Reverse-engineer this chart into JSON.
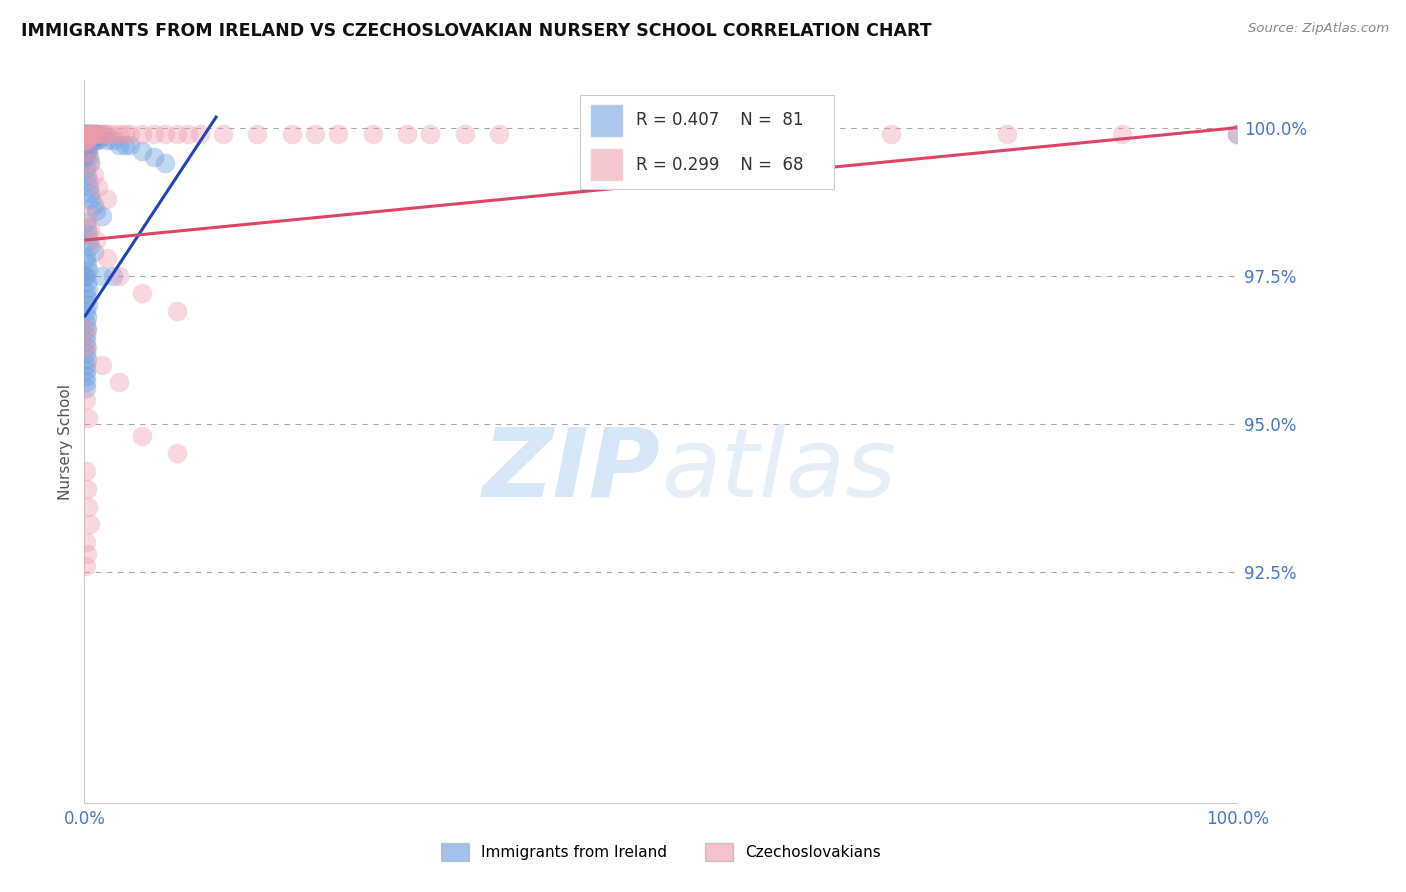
{
  "title": "IMMIGRANTS FROM IRELAND VS CZECHOSLOVAKIAN NURSERY SCHOOL CORRELATION CHART",
  "source": "Source: ZipAtlas.com",
  "ylabel": "Nursery School",
  "blue_color": "#6699dd",
  "pink_color": "#ee99aa",
  "blue_line_color": "#2244bb",
  "pink_line_color": "#dd4466",
  "axis_tick_color": "#4477cc",
  "title_color": "#111111",
  "source_color": "#888888",
  "watermark_color": "#cce0f5",
  "grid_color": "#aaaaaa",
  "xmin": 0.0,
  "xmax": 1.0,
  "ymin": 0.886,
  "ymax": 1.008,
  "ytick_vals": [
    0.925,
    0.95,
    0.975,
    1.0
  ],
  "ytick_labels": [
    "92.5%",
    "95.0%",
    "97.5%",
    "100.0%"
  ],
  "xtick_vals": [
    0.0,
    1.0
  ],
  "xtick_labels": [
    "0.0%",
    "100.0%"
  ],
  "blue_line_x": [
    0.0,
    0.115
  ],
  "blue_line_y": [
    0.968,
    1.002
  ],
  "pink_line_x": [
    0.0,
    1.0
  ],
  "pink_line_y": [
    0.981,
    1.0
  ],
  "ireland_points": [
    [
      0.002,
      0.999
    ],
    [
      0.003,
      0.999
    ],
    [
      0.004,
      0.999
    ],
    [
      0.005,
      0.999
    ],
    [
      0.0,
      0.999
    ],
    [
      0.0,
      0.999
    ],
    [
      0.001,
      0.999
    ],
    [
      0.001,
      0.999
    ],
    [
      0.002,
      0.998
    ],
    [
      0.003,
      0.998
    ],
    [
      0.004,
      0.998
    ],
    [
      0.005,
      0.998
    ],
    [
      0.006,
      0.999
    ],
    [
      0.007,
      0.999
    ],
    [
      0.008,
      0.999
    ],
    [
      0.009,
      0.999
    ],
    [
      0.006,
      0.998
    ],
    [
      0.007,
      0.998
    ],
    [
      0.008,
      0.998
    ],
    [
      0.01,
      0.999
    ],
    [
      0.012,
      0.999
    ],
    [
      0.015,
      0.999
    ],
    [
      0.01,
      0.998
    ],
    [
      0.012,
      0.998
    ],
    [
      0.02,
      0.998
    ],
    [
      0.025,
      0.998
    ],
    [
      0.03,
      0.997
    ],
    [
      0.035,
      0.997
    ],
    [
      0.04,
      0.997
    ],
    [
      0.05,
      0.996
    ],
    [
      0.06,
      0.995
    ],
    [
      0.07,
      0.994
    ],
    [
      0.0,
      0.997
    ],
    [
      0.001,
      0.997
    ],
    [
      0.002,
      0.997
    ],
    [
      0.0,
      0.996
    ],
    [
      0.001,
      0.996
    ],
    [
      0.002,
      0.996
    ],
    [
      0.0,
      0.995
    ],
    [
      0.001,
      0.995
    ],
    [
      0.003,
      0.996
    ],
    [
      0.004,
      0.995
    ],
    [
      0.005,
      0.994
    ],
    [
      0.001,
      0.993
    ],
    [
      0.002,
      0.992
    ],
    [
      0.003,
      0.991
    ],
    [
      0.004,
      0.99
    ],
    [
      0.005,
      0.989
    ],
    [
      0.006,
      0.988
    ],
    [
      0.008,
      0.987
    ],
    [
      0.01,
      0.986
    ],
    [
      0.015,
      0.985
    ],
    [
      0.001,
      0.984
    ],
    [
      0.002,
      0.983
    ],
    [
      0.003,
      0.982
    ],
    [
      0.004,
      0.981
    ],
    [
      0.005,
      0.98
    ],
    [
      0.008,
      0.979
    ],
    [
      0.001,
      0.978
    ],
    [
      0.002,
      0.977
    ],
    [
      0.003,
      0.976
    ],
    [
      0.001,
      0.975
    ],
    [
      0.002,
      0.974
    ],
    [
      0.003,
      0.973
    ],
    [
      0.001,
      0.972
    ],
    [
      0.002,
      0.971
    ],
    [
      0.003,
      0.97
    ],
    [
      0.001,
      0.969
    ],
    [
      0.002,
      0.968
    ],
    [
      0.001,
      0.967
    ],
    [
      0.002,
      0.966
    ],
    [
      0.001,
      0.965
    ],
    [
      0.001,
      0.964
    ],
    [
      0.001,
      0.963
    ],
    [
      0.001,
      0.962
    ],
    [
      0.002,
      0.961
    ],
    [
      0.001,
      0.96
    ],
    [
      0.001,
      0.959
    ],
    [
      0.001,
      0.958
    ],
    [
      0.001,
      0.957
    ],
    [
      0.001,
      0.956
    ],
    [
      0.0,
      0.975
    ],
    [
      0.015,
      0.975
    ],
    [
      0.025,
      0.975
    ],
    [
      1.0,
      0.999
    ],
    [
      0.45,
      0.999
    ],
    [
      0.5,
      0.999
    ],
    [
      0.55,
      0.999
    ]
  ],
  "czech_points": [
    [
      0.0,
      0.999
    ],
    [
      0.001,
      0.999
    ],
    [
      0.002,
      0.999
    ],
    [
      0.003,
      0.999
    ],
    [
      0.004,
      0.999
    ],
    [
      0.005,
      0.999
    ],
    [
      0.006,
      0.999
    ],
    [
      0.007,
      0.999
    ],
    [
      0.008,
      0.999
    ],
    [
      0.01,
      0.999
    ],
    [
      0.012,
      0.999
    ],
    [
      0.015,
      0.999
    ],
    [
      0.018,
      0.999
    ],
    [
      0.02,
      0.999
    ],
    [
      0.025,
      0.999
    ],
    [
      0.03,
      0.999
    ],
    [
      0.035,
      0.999
    ],
    [
      0.04,
      0.999
    ],
    [
      0.05,
      0.999
    ],
    [
      0.06,
      0.999
    ],
    [
      0.07,
      0.999
    ],
    [
      0.08,
      0.999
    ],
    [
      0.09,
      0.999
    ],
    [
      0.1,
      0.999
    ],
    [
      0.12,
      0.999
    ],
    [
      0.15,
      0.999
    ],
    [
      0.18,
      0.999
    ],
    [
      0.2,
      0.999
    ],
    [
      0.22,
      0.999
    ],
    [
      0.25,
      0.999
    ],
    [
      0.28,
      0.999
    ],
    [
      0.3,
      0.999
    ],
    [
      0.33,
      0.999
    ],
    [
      0.36,
      0.999
    ],
    [
      0.0,
      0.998
    ],
    [
      0.001,
      0.998
    ],
    [
      0.002,
      0.998
    ],
    [
      0.003,
      0.996
    ],
    [
      0.005,
      0.994
    ],
    [
      0.008,
      0.992
    ],
    [
      0.012,
      0.99
    ],
    [
      0.02,
      0.988
    ],
    [
      0.003,
      0.985
    ],
    [
      0.005,
      0.983
    ],
    [
      0.01,
      0.981
    ],
    [
      0.02,
      0.978
    ],
    [
      0.03,
      0.975
    ],
    [
      0.05,
      0.972
    ],
    [
      0.08,
      0.969
    ],
    [
      0.001,
      0.966
    ],
    [
      0.002,
      0.963
    ],
    [
      0.015,
      0.96
    ],
    [
      0.03,
      0.957
    ],
    [
      0.001,
      0.954
    ],
    [
      0.003,
      0.951
    ],
    [
      0.05,
      0.948
    ],
    [
      0.08,
      0.945
    ],
    [
      0.001,
      0.942
    ],
    [
      0.002,
      0.939
    ],
    [
      0.003,
      0.936
    ],
    [
      0.005,
      0.933
    ],
    [
      0.001,
      0.93
    ],
    [
      0.002,
      0.928
    ],
    [
      0.001,
      0.926
    ],
    [
      1.0,
      0.999
    ],
    [
      0.5,
      0.999
    ],
    [
      0.6,
      0.999
    ],
    [
      0.7,
      0.999
    ],
    [
      0.8,
      0.999
    ],
    [
      0.9,
      0.999
    ]
  ]
}
